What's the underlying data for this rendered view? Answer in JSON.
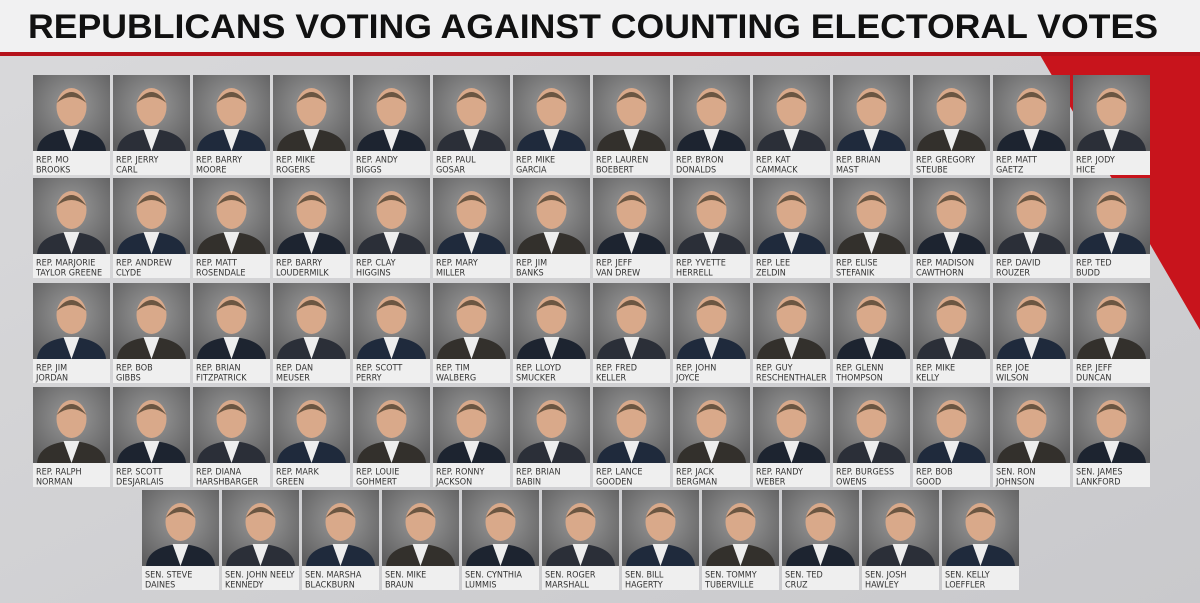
{
  "header": {
    "title": "REPUBLICANS VOTING AGAINST COUNTING ELECTORAL VOTES"
  },
  "rows": [
    [
      {
        "lines": [
          "REP. MO",
          "BROOKS"
        ]
      },
      {
        "lines": [
          "REP. JERRY",
          "CARL"
        ]
      },
      {
        "lines": [
          "REP. BARRY",
          "MOORE"
        ]
      },
      {
        "lines": [
          "REP. MIKE",
          "ROGERS"
        ]
      },
      {
        "lines": [
          "REP. ANDY",
          "BIGGS"
        ]
      },
      {
        "lines": [
          "REP. PAUL",
          "GOSAR"
        ]
      },
      {
        "lines": [
          "REP. MIKE",
          "GARCIA"
        ]
      },
      {
        "lines": [
          "REP. LAUREN",
          "BOEBERT"
        ]
      },
      {
        "lines": [
          "REP. BYRON",
          "DONALDS"
        ]
      },
      {
        "lines": [
          "REP. KAT",
          "CAMMACK"
        ]
      },
      {
        "lines": [
          "REP. BRIAN",
          "MAST"
        ]
      },
      {
        "lines": [
          "REP. GREGORY",
          "STEUBE"
        ]
      },
      {
        "lines": [
          "REP. MATT",
          "GAETZ"
        ]
      },
      {
        "lines": [
          "REP. JODY",
          "HICE"
        ]
      }
    ],
    [
      {
        "lines": [
          "REP. MARJORIE",
          "TAYLOR GREENE"
        ]
      },
      {
        "lines": [
          "REP. ANDREW",
          "CLYDE"
        ]
      },
      {
        "lines": [
          "REP. MATT",
          "ROSENDALE"
        ]
      },
      {
        "lines": [
          "REP. BARRY",
          "LOUDERMILK"
        ]
      },
      {
        "lines": [
          "REP. CLAY",
          "HIGGINS"
        ]
      },
      {
        "lines": [
          "REP. MARY",
          "MILLER"
        ]
      },
      {
        "lines": [
          "REP. JIM",
          "BANKS"
        ]
      },
      {
        "lines": [
          "REP. JEFF",
          "VAN DREW"
        ]
      },
      {
        "lines": [
          "REP. YVETTE",
          "HERRELL"
        ]
      },
      {
        "lines": [
          "REP. LEE",
          "ZELDIN"
        ]
      },
      {
        "lines": [
          "REP. ELISE",
          "STEFANIK"
        ]
      },
      {
        "lines": [
          "REP. MADISON",
          "CAWTHORN"
        ]
      },
      {
        "lines": [
          "REP. DAVID",
          "ROUZER"
        ]
      },
      {
        "lines": [
          "REP. TED",
          "BUDD"
        ]
      }
    ],
    [
      {
        "lines": [
          "REP. JIM",
          "JORDAN"
        ]
      },
      {
        "lines": [
          "REP. BOB",
          "GIBBS"
        ]
      },
      {
        "lines": [
          "REP. BRIAN",
          "FITZPATRICK"
        ]
      },
      {
        "lines": [
          "REP. DAN",
          "MEUSER"
        ]
      },
      {
        "lines": [
          "REP. SCOTT",
          "PERRY"
        ]
      },
      {
        "lines": [
          "REP. TIM",
          "WALBERG"
        ]
      },
      {
        "lines": [
          "REP. LLOYD",
          "SMUCKER"
        ]
      },
      {
        "lines": [
          "REP. FRED",
          "KELLER"
        ]
      },
      {
        "lines": [
          "REP. JOHN",
          "JOYCE"
        ]
      },
      {
        "lines": [
          "REP. GUY",
          "RESCHENTHALER"
        ]
      },
      {
        "lines": [
          "REP. GLENN",
          "THOMPSON"
        ]
      },
      {
        "lines": [
          "REP. MIKE",
          "KELLY"
        ]
      },
      {
        "lines": [
          "REP. JOE",
          "WILSON"
        ]
      },
      {
        "lines": [
          "REP. JEFF",
          "DUNCAN"
        ]
      }
    ],
    [
      {
        "lines": [
          "REP. RALPH",
          "NORMAN"
        ]
      },
      {
        "lines": [
          "REP. SCOTT",
          "DESJARLAIS"
        ]
      },
      {
        "lines": [
          "REP. DIANA",
          "HARSHBARGER"
        ]
      },
      {
        "lines": [
          "REP. MARK",
          "GREEN"
        ]
      },
      {
        "lines": [
          "REP. LOUIE",
          "GOHMERT"
        ]
      },
      {
        "lines": [
          "REP. RONNY",
          "JACKSON"
        ]
      },
      {
        "lines": [
          "REP. BRIAN",
          "BABIN"
        ]
      },
      {
        "lines": [
          "REP. LANCE",
          "GOODEN"
        ]
      },
      {
        "lines": [
          "REP. JACK",
          "BERGMAN"
        ]
      },
      {
        "lines": [
          "REP. RANDY",
          "WEBER"
        ]
      },
      {
        "lines": [
          "REP. BURGESS",
          "OWENS"
        ]
      },
      {
        "lines": [
          "REP. BOB",
          "GOOD"
        ]
      },
      {
        "lines": [
          "SEN. RON",
          "JOHNSON"
        ]
      },
      {
        "lines": [
          "SEN. JAMES",
          "LANKFORD"
        ]
      }
    ],
    [
      {
        "lines": [
          "SEN. STEVE",
          "DAINES"
        ]
      },
      {
        "lines": [
          "SEN. JOHN NEELY",
          "KENNEDY"
        ]
      },
      {
        "lines": [
          "SEN. MARSHA",
          "BLACKBURN"
        ]
      },
      {
        "lines": [
          "SEN. MIKE",
          "BRAUN"
        ]
      },
      {
        "lines": [
          "SEN. CYNTHIA",
          "LUMMIS"
        ]
      },
      {
        "lines": [
          "SEN. ROGER",
          "MARSHALL"
        ]
      },
      {
        "lines": [
          "SEN. BILL",
          "HAGERTY"
        ]
      },
      {
        "lines": [
          "SEN. TOMMY",
          "TUBERVILLE"
        ]
      },
      {
        "lines": [
          "SEN. TED",
          "CRUZ"
        ]
      },
      {
        "lines": [
          "SEN. JOSH",
          "HAWLEY"
        ]
      },
      {
        "lines": [
          "SEN. KELLY",
          "LOEFFLER"
        ]
      }
    ]
  ]
}
